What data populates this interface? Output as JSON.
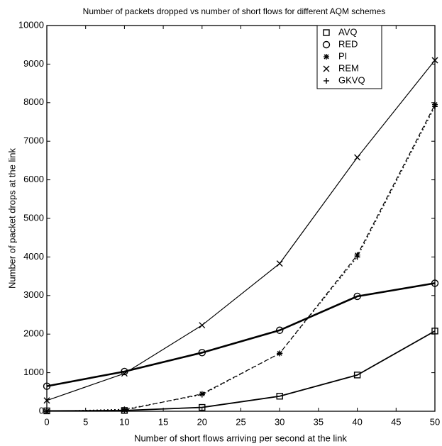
{
  "chart_data": {
    "type": "line",
    "title": "Number of packets dropped vs number of short flows for different AQM schemes",
    "x_label": "Number of short flows arriving per second at the link",
    "y_label": "Number of packet drops at the link",
    "x": [
      0,
      10,
      20,
      30,
      40,
      50
    ],
    "xlim": [
      0,
      50
    ],
    "xticks": [
      0,
      5,
      10,
      15,
      20,
      25,
      30,
      35,
      40,
      45,
      50
    ],
    "ylim": [
      0,
      10000
    ],
    "yticks": [
      0,
      1000,
      2000,
      3000,
      4000,
      5000,
      6000,
      7000,
      8000,
      9000,
      10000
    ],
    "legend": "upper right",
    "series": [
      {
        "name": "AVQ",
        "color": "#000000",
        "marker": "square",
        "dash": "solid",
        "width": 1.8,
        "values": [
          10,
          20,
          100,
          390,
          940,
          2080
        ]
      },
      {
        "name": "RED",
        "color": "#000000",
        "marker": "circle",
        "dash": "solid",
        "width": 2.6,
        "values": [
          650,
          1030,
          1520,
          2100,
          2980,
          3320
        ]
      },
      {
        "name": "PI",
        "color": "#000000",
        "marker": "star",
        "dash": "dashed",
        "width": 1.2,
        "values": [
          0,
          30,
          450,
          1500,
          4050,
          7950
        ]
      },
      {
        "name": "REM",
        "color": "#000000",
        "marker": "x",
        "dash": "solid",
        "width": 1.2,
        "values": [
          280,
          980,
          2230,
          3830,
          6580,
          9100
        ]
      },
      {
        "name": "GKVQ",
        "color": "#000000",
        "marker": "plus",
        "dash": "dotted",
        "width": 1.2,
        "values": [
          0,
          50,
          430,
          1500,
          4000,
          7900
        ]
      }
    ]
  }
}
